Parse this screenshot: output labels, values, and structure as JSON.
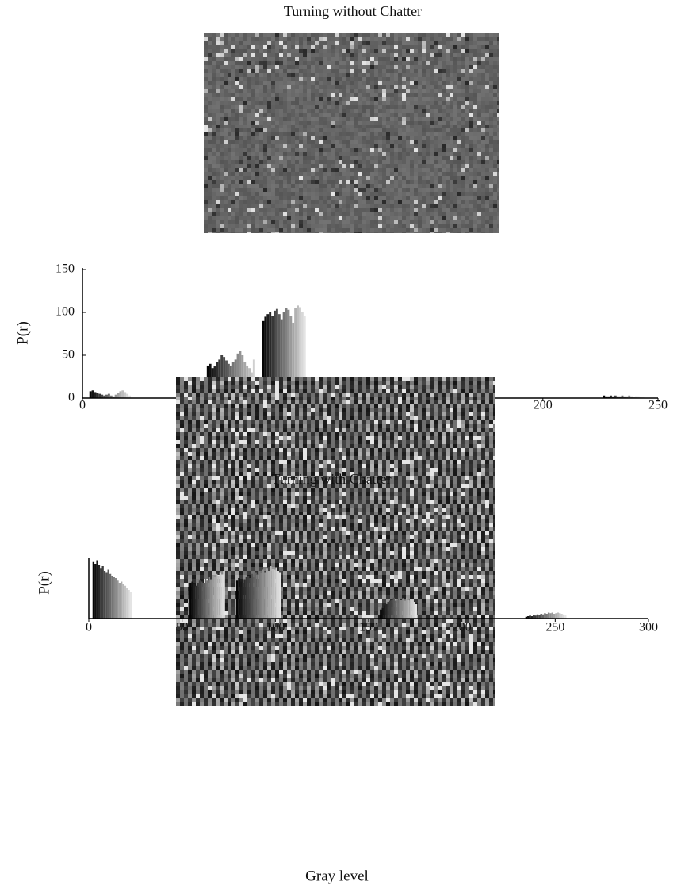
{
  "chart_data": [
    {
      "type": "bar",
      "title": "Turning without Chatter",
      "xlabel": "Gray level",
      "ylabel": "P(r)",
      "xlim": [
        0,
        250
      ],
      "xticks": [
        0,
        50,
        100,
        150,
        200,
        250
      ],
      "ylim": [
        0,
        150
      ],
      "yticks": [
        0,
        50,
        100,
        150
      ],
      "colors": [
        "#050505",
        "#e4e4e4"
      ],
      "x": [
        3,
        4,
        5,
        6,
        7,
        8,
        9,
        10,
        11,
        12,
        13,
        14,
        15,
        16,
        17,
        18,
        19,
        20,
        54,
        55,
        56,
        57,
        58,
        59,
        60,
        61,
        62,
        63,
        64,
        65,
        66,
        67,
        68,
        69,
        70,
        71,
        72,
        73,
        74,
        75,
        76,
        78,
        79,
        80,
        81,
        82,
        83,
        84,
        85,
        86,
        87,
        88,
        89,
        90,
        91,
        92,
        93,
        94,
        95,
        96,
        152,
        153,
        154,
        155,
        156,
        157,
        158,
        159,
        160,
        161,
        162,
        163,
        164,
        165,
        166,
        167,
        168,
        169,
        170,
        226,
        227,
        228,
        229,
        230,
        231,
        232,
        233,
        234,
        235,
        236,
        237,
        238,
        239,
        240,
        241,
        242,
        243
      ],
      "values": [
        8,
        9,
        7,
        6,
        5,
        4,
        3,
        4,
        5,
        3,
        2,
        4,
        6,
        8,
        9,
        7,
        5,
        3,
        38,
        40,
        35,
        37,
        42,
        45,
        50,
        48,
        44,
        40,
        38,
        42,
        45,
        52,
        55,
        50,
        42,
        38,
        35,
        30,
        45,
        25,
        20,
        90,
        95,
        98,
        100,
        96,
        102,
        104,
        98,
        92,
        100,
        105,
        103,
        96,
        88,
        105,
        108,
        106,
        100,
        96,
        10,
        14,
        22,
        18,
        12,
        16,
        14,
        20,
        18,
        15,
        22,
        20,
        12,
        14,
        18,
        16,
        12,
        8,
        6,
        3,
        2,
        2,
        3,
        2,
        3,
        2,
        2,
        3,
        2,
        2,
        3,
        2,
        1,
        2,
        2,
        1,
        1
      ]
    },
    {
      "type": "bar",
      "title": "Turning with Chatter",
      "xlabel": "Gray level",
      "ylabel": "P(r)",
      "xlim": [
        0,
        300
      ],
      "xticks": [
        0,
        50,
        100,
        150,
        200,
        250,
        300
      ],
      "ylim": [
        0,
        100
      ],
      "colors": [
        "#050505",
        "#e4e4e4"
      ],
      "x": [
        2,
        3,
        4,
        5,
        6,
        7,
        8,
        9,
        10,
        11,
        12,
        13,
        14,
        15,
        16,
        17,
        18,
        19,
        20,
        21,
        22,
        54,
        55,
        56,
        57,
        58,
        59,
        60,
        61,
        62,
        63,
        64,
        65,
        66,
        67,
        68,
        69,
        70,
        71,
        72,
        79,
        80,
        81,
        82,
        83,
        84,
        85,
        86,
        87,
        88,
        89,
        90,
        91,
        92,
        93,
        94,
        95,
        96,
        97,
        98,
        99,
        100,
        101,
        102,
        156,
        157,
        158,
        159,
        160,
        161,
        162,
        163,
        164,
        165,
        166,
        167,
        168,
        169,
        170,
        171,
        172,
        173,
        174,
        175,
        234,
        235,
        236,
        237,
        238,
        239,
        240,
        241,
        242,
        243,
        244,
        245,
        246,
        247,
        248,
        249,
        250,
        251,
        252,
        253,
        254,
        255
      ],
      "values": [
        95,
        92,
        98,
        90,
        85,
        88,
        80,
        78,
        82,
        75,
        72,
        70,
        68,
        65,
        60,
        62,
        58,
        55,
        52,
        48,
        45,
        60,
        62,
        58,
        55,
        60,
        65,
        62,
        60,
        68,
        65,
        70,
        66,
        72,
        70,
        75,
        72,
        78,
        74,
        80,
        65,
        68,
        62,
        60,
        66,
        70,
        72,
        68,
        75,
        70,
        78,
        74,
        80,
        76,
        82,
        78,
        85,
        80,
        88,
        84,
        82,
        86,
        80,
        78,
        15,
        18,
        22,
        25,
        28,
        30,
        32,
        35,
        30,
        33,
        35,
        32,
        34,
        30,
        35,
        33,
        30,
        32,
        28,
        25,
        3,
        4,
        5,
        4,
        6,
        5,
        7,
        6,
        8,
        7,
        9,
        8,
        10,
        9,
        10,
        8,
        9,
        10,
        9,
        8,
        7,
        6
      ]
    }
  ]
}
